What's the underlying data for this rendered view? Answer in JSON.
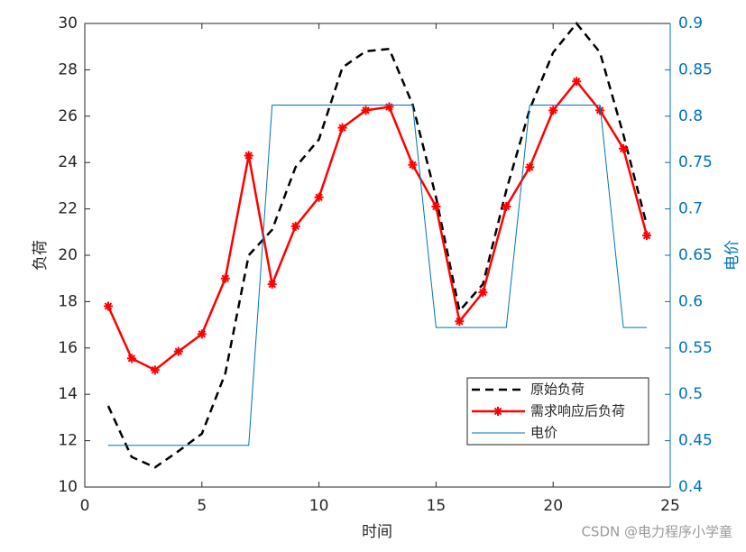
{
  "chart_data": {
    "type": "line",
    "x": [
      1,
      2,
      3,
      4,
      5,
      6,
      7,
      8,
      9,
      10,
      11,
      12,
      13,
      14,
      15,
      16,
      17,
      18,
      19,
      20,
      21,
      22,
      23,
      24
    ],
    "xlabel": "时间",
    "ylabel": "负荷",
    "y2label": "电价",
    "xlim": [
      0,
      25
    ],
    "xticks": [
      0,
      5,
      10,
      15,
      20,
      25
    ],
    "ylim": [
      10,
      30
    ],
    "yticks": [
      10,
      12,
      14,
      16,
      18,
      20,
      22,
      24,
      26,
      28,
      30
    ],
    "y2lim": [
      0.4,
      0.9
    ],
    "y2ticks": [
      0.4,
      0.45,
      0.5,
      0.55,
      0.6,
      0.65,
      0.7,
      0.75,
      0.8,
      0.85,
      0.9
    ],
    "legend_loc": "lower right",
    "series": [
      {
        "name": "原始负荷",
        "color": "#000000",
        "dash": true,
        "marker": false,
        "values": [
          13.5,
          11.3,
          10.85,
          11.55,
          12.3,
          14.9,
          20.0,
          21.1,
          23.8,
          25.0,
          28.1,
          28.8,
          28.9,
          26.5,
          22.5,
          17.6,
          18.75,
          22.8,
          26.3,
          28.75,
          30.0,
          28.75,
          25.2,
          21.3
        ]
      },
      {
        "name": "需求响应后负荷",
        "color": "#ff0000",
        "dash": false,
        "marker": true,
        "values": [
          17.8,
          15.55,
          15.05,
          15.85,
          16.6,
          19.0,
          24.3,
          18.75,
          21.25,
          22.5,
          25.5,
          26.25,
          26.4,
          23.9,
          22.1,
          17.15,
          18.4,
          22.1,
          23.8,
          26.25,
          27.5,
          26.25,
          24.6,
          20.85
        ]
      },
      {
        "name": "电价",
        "color": "#0072bd",
        "dash": false,
        "marker": false,
        "axis": "y2",
        "values": [
          0.445,
          0.445,
          0.445,
          0.445,
          0.445,
          0.445,
          0.445,
          0.812,
          0.812,
          0.812,
          0.812,
          0.812,
          0.812,
          0.812,
          0.572,
          0.572,
          0.572,
          0.572,
          0.812,
          0.812,
          0.812,
          0.812,
          0.572,
          0.572
        ]
      }
    ],
    "watermark": "CSDN @电力程序小学童"
  }
}
